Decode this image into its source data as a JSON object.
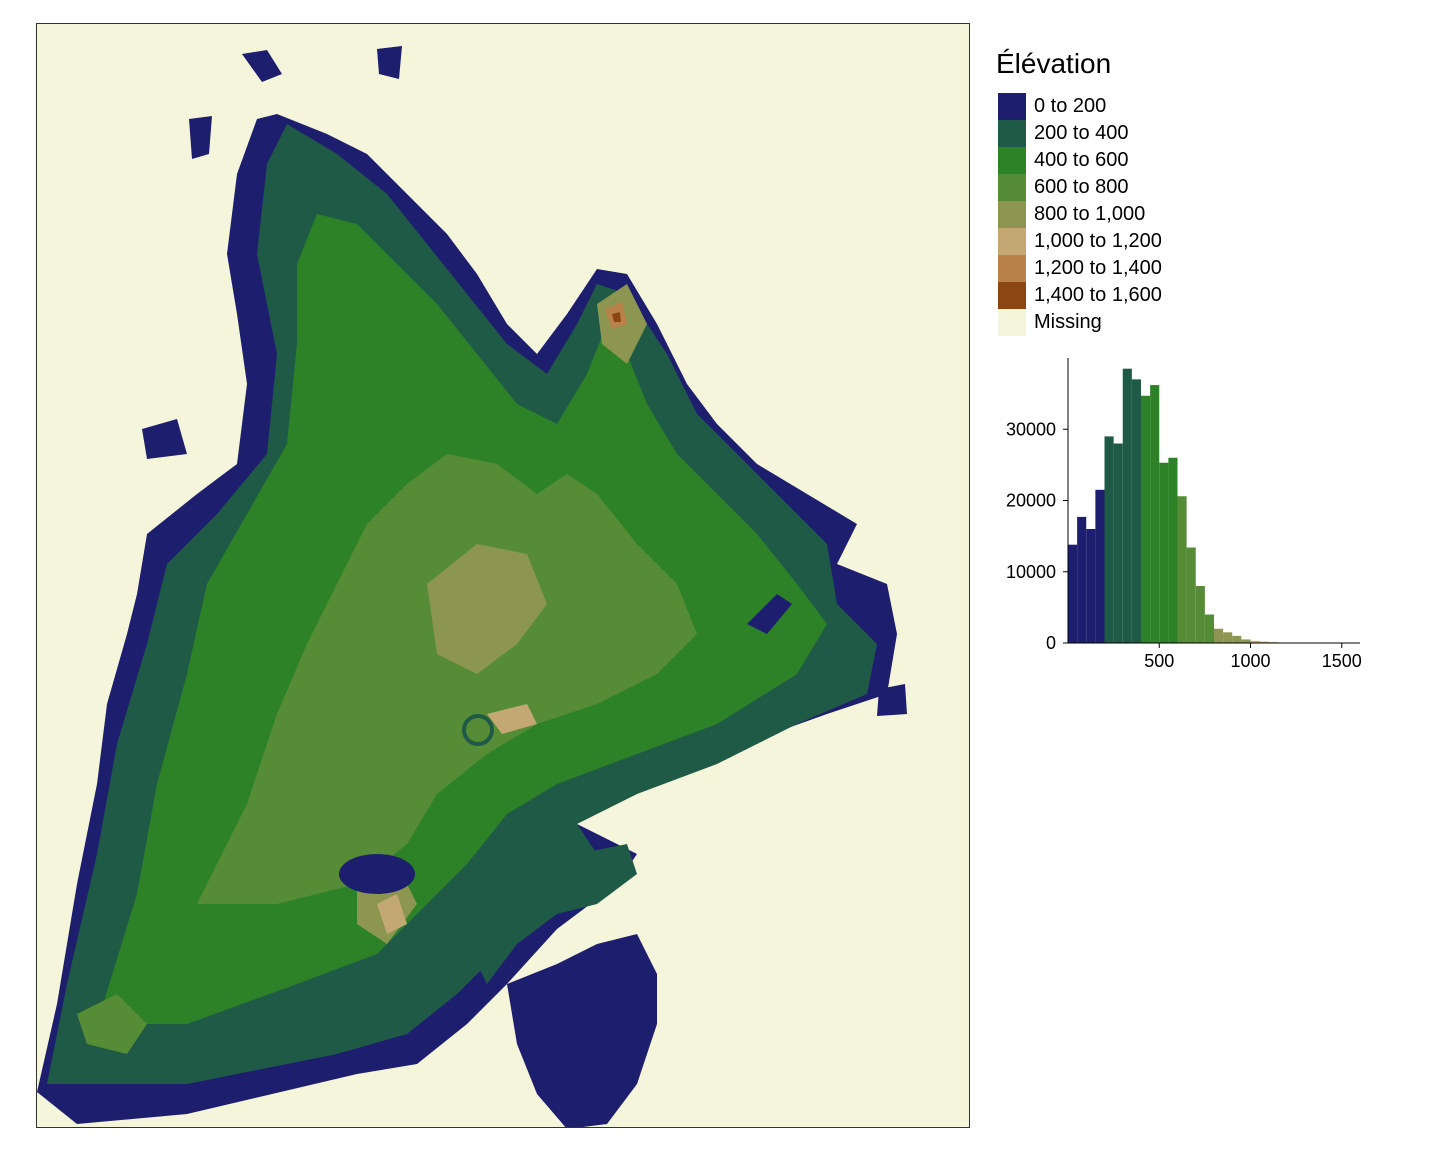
{
  "legend": {
    "title": "Élévation",
    "items": [
      {
        "label": "0 to 200",
        "color": "#1e1e6e"
      },
      {
        "label": "200 to 400",
        "color": "#1e5a46"
      },
      {
        "label": "400 to 600",
        "color": "#2d8228"
      },
      {
        "label": "600 to 800",
        "color": "#578c37"
      },
      {
        "label": "800 to 1,000",
        "color": "#8c9650"
      },
      {
        "label": "1,000 to 1,200",
        "color": "#c3a873"
      },
      {
        "label": "1,200 to 1,400",
        "color": "#b9824b"
      },
      {
        "label": "1,400 to 1,600",
        "color": "#8c4614"
      },
      {
        "label": "Missing",
        "color": "#f5f5dc"
      }
    ]
  },
  "map": {
    "background_color": "#f5f5dc",
    "region_colors": [
      "#1e1e6e",
      "#1e5a46",
      "#2d8228",
      "#578c37",
      "#8c9650",
      "#c3a873",
      "#b9824b",
      "#8c4614"
    ]
  },
  "chart_data": {
    "type": "bar",
    "subtype": "histogram",
    "bin_width": 50,
    "bin_starts": [
      0,
      50,
      100,
      150,
      200,
      250,
      300,
      350,
      400,
      450,
      500,
      550,
      600,
      650,
      700,
      750,
      800,
      850,
      900,
      950,
      1000,
      1050,
      1100,
      1150,
      1200
    ],
    "values": [
      13800,
      17700,
      16000,
      21500,
      29000,
      28000,
      38500,
      37000,
      34700,
      36200,
      25300,
      26000,
      20600,
      13400,
      8000,
      4000,
      2000,
      1500,
      1000,
      500,
      300,
      200,
      120,
      60,
      20
    ],
    "xlim": [
      0,
      1600
    ],
    "ylim": [
      0,
      40000
    ],
    "x_ticks": [
      500,
      1000,
      1500
    ],
    "y_ticks": [
      0,
      10000,
      20000,
      30000
    ],
    "colored_by": "elevation class",
    "xlabel": "",
    "ylabel": ""
  }
}
